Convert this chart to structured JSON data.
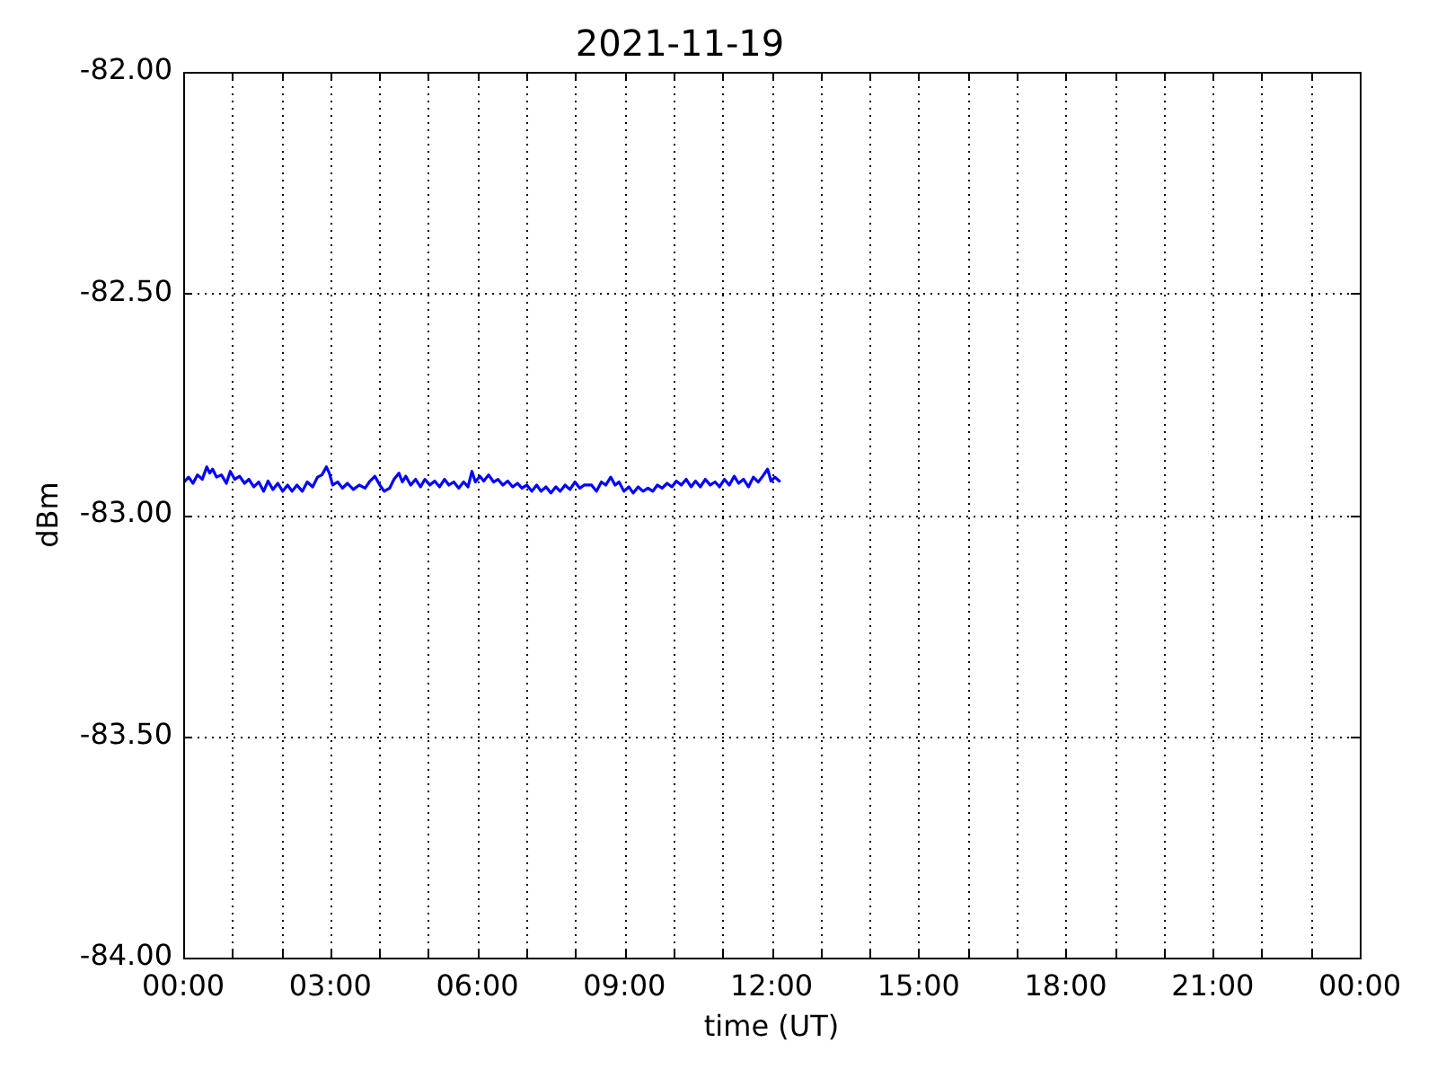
{
  "chart_data": {
    "type": "line",
    "title": "2021-11-19",
    "xlabel": "time (UT)",
    "ylabel": "dBm",
    "x": [
      0.02,
      0.11,
      0.2,
      0.29,
      0.39,
      0.48,
      0.54,
      0.6,
      0.68,
      0.78,
      0.88,
      0.96,
      1.05,
      1.15,
      1.25,
      1.34,
      1.44,
      1.54,
      1.64,
      1.73,
      1.83,
      1.93,
      2.03,
      2.13,
      2.22,
      2.32,
      2.43,
      2.53,
      2.64,
      2.74,
      2.83,
      2.92,
      2.98,
      3.05,
      3.15,
      3.25,
      3.35,
      3.47,
      3.59,
      3.71,
      3.81,
      3.91,
      4.01,
      4.1,
      4.21,
      4.3,
      4.4,
      4.47,
      4.54,
      4.64,
      4.74,
      4.84,
      4.93,
      5.03,
      5.13,
      5.23,
      5.33,
      5.42,
      5.52,
      5.62,
      5.72,
      5.81,
      5.89,
      5.96,
      6.05,
      6.13,
      6.23,
      6.33,
      6.42,
      6.52,
      6.62,
      6.72,
      6.82,
      6.91,
      7.01,
      7.11,
      7.21,
      7.3,
      7.4,
      7.5,
      7.6,
      7.69,
      7.79,
      7.89,
      7.99,
      8.09,
      8.18,
      8.33,
      8.43,
      8.53,
      8.62,
      8.72,
      8.81,
      8.89,
      8.99,
      9.09,
      9.18,
      9.28,
      9.38,
      9.48,
      9.58,
      9.67,
      9.77,
      9.87,
      9.97,
      10.06,
      10.16,
      10.26,
      10.36,
      10.45,
      10.55,
      10.65,
      10.75,
      10.85,
      10.94,
      11.04,
      11.14,
      11.24,
      11.33,
      11.43,
      11.53,
      11.63,
      11.73,
      11.82,
      11.92,
      11.99,
      12.07,
      12.16
    ],
    "series": [
      {
        "color": "#0000ff",
        "values": [
          -82.926,
          -82.915,
          -82.929,
          -82.91,
          -82.92,
          -82.892,
          -82.906,
          -82.897,
          -82.915,
          -82.91,
          -82.929,
          -82.902,
          -82.92,
          -82.913,
          -82.929,
          -82.92,
          -82.937,
          -82.926,
          -82.947,
          -82.924,
          -82.943,
          -82.929,
          -82.947,
          -82.933,
          -82.947,
          -82.933,
          -82.947,
          -82.926,
          -82.937,
          -82.915,
          -82.91,
          -82.892,
          -82.906,
          -82.933,
          -82.926,
          -82.94,
          -82.929,
          -82.943,
          -82.933,
          -82.94,
          -82.924,
          -82.913,
          -82.933,
          -82.947,
          -82.94,
          -82.92,
          -82.906,
          -82.926,
          -82.913,
          -82.933,
          -82.92,
          -82.937,
          -82.92,
          -82.933,
          -82.924,
          -82.937,
          -82.92,
          -82.933,
          -82.926,
          -82.94,
          -82.926,
          -82.937,
          -82.902,
          -82.926,
          -82.913,
          -82.924,
          -82.91,
          -82.926,
          -82.92,
          -82.933,
          -82.924,
          -82.937,
          -82.929,
          -82.94,
          -82.933,
          -82.947,
          -82.933,
          -82.947,
          -82.937,
          -82.951,
          -82.937,
          -82.947,
          -82.933,
          -82.943,
          -82.926,
          -82.94,
          -82.933,
          -82.933,
          -82.947,
          -82.926,
          -82.933,
          -82.915,
          -82.933,
          -82.926,
          -82.947,
          -82.937,
          -82.951,
          -82.937,
          -82.947,
          -82.94,
          -82.947,
          -82.933,
          -82.94,
          -82.929,
          -82.937,
          -82.924,
          -82.933,
          -82.92,
          -82.937,
          -82.924,
          -82.937,
          -82.92,
          -82.933,
          -82.926,
          -82.937,
          -82.92,
          -82.933,
          -82.913,
          -82.929,
          -82.92,
          -82.937,
          -82.915,
          -82.926,
          -82.913,
          -82.897,
          -82.924,
          -82.915,
          -82.924
        ]
      }
    ],
    "xlim": [
      0,
      24
    ],
    "xticks": [
      {
        "value": 0,
        "label": "00:00"
      },
      {
        "value": 1,
        "label": null
      },
      {
        "value": 2,
        "label": null
      },
      {
        "value": 3,
        "label": "03:00"
      },
      {
        "value": 4,
        "label": null
      },
      {
        "value": 5,
        "label": null
      },
      {
        "value": 6,
        "label": "06:00"
      },
      {
        "value": 7,
        "label": null
      },
      {
        "value": 8,
        "label": null
      },
      {
        "value": 9,
        "label": "09:00"
      },
      {
        "value": 10,
        "label": null
      },
      {
        "value": 11,
        "label": null
      },
      {
        "value": 12,
        "label": "12:00"
      },
      {
        "value": 13,
        "label": null
      },
      {
        "value": 14,
        "label": null
      },
      {
        "value": 15,
        "label": "15:00"
      },
      {
        "value": 16,
        "label": null
      },
      {
        "value": 17,
        "label": null
      },
      {
        "value": 18,
        "label": "18:00"
      },
      {
        "value": 19,
        "label": null
      },
      {
        "value": 20,
        "label": null
      },
      {
        "value": 21,
        "label": "21:00"
      },
      {
        "value": 22,
        "label": null
      },
      {
        "value": 23,
        "label": null
      },
      {
        "value": 24,
        "label": "00:00"
      }
    ],
    "ylim": [
      -84,
      -82
    ],
    "yticks": [
      {
        "value": -84,
        "label": "-84.00"
      },
      {
        "value": -83.5,
        "label": "-83.50"
      },
      {
        "value": -83,
        "label": "-83.00"
      },
      {
        "value": -82.5,
        "label": "-82.50"
      },
      {
        "value": -82,
        "label": "-82.00"
      }
    ],
    "grid": true,
    "legend": false,
    "marker": "none",
    "line_style": "solid"
  }
}
